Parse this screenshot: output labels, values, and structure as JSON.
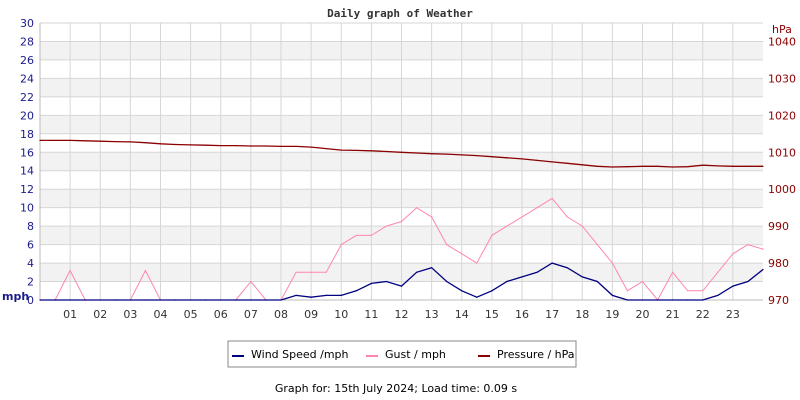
{
  "chart_data": {
    "type": "line",
    "title": "Daily graph of Weather",
    "ylabel": "mph",
    "y2label": "hPa",
    "ylim": [
      0,
      30
    ],
    "y2lim": [
      970,
      1045
    ],
    "yticks": [
      0,
      2,
      4,
      6,
      8,
      10,
      12,
      14,
      16,
      18,
      20,
      22,
      24,
      26,
      28,
      30
    ],
    "y2ticks": [
      970,
      980,
      990,
      1000,
      1010,
      1020,
      1030,
      1040
    ],
    "xlim": [
      0,
      24
    ],
    "xticks": [
      "01",
      "02",
      "03",
      "04",
      "05",
      "06",
      "07",
      "08",
      "09",
      "10",
      "11",
      "12",
      "13",
      "14",
      "15",
      "16",
      "17",
      "18",
      "19",
      "20",
      "21",
      "22",
      "23"
    ],
    "grid": true,
    "legend": "bottom",
    "x": [
      0,
      0.5,
      1,
      1.5,
      2,
      2.5,
      3,
      3.5,
      4,
      4.5,
      5,
      5.5,
      6,
      6.5,
      7,
      7.5,
      8,
      8.5,
      9,
      9.5,
      10,
      10.5,
      11,
      11.5,
      12,
      12.5,
      13,
      13.5,
      14,
      14.5,
      15,
      15.5,
      16,
      16.5,
      17,
      17.5,
      18,
      18.5,
      19,
      19.5,
      20,
      20.5,
      21,
      21.5,
      22,
      22.5,
      23,
      23.5,
      24
    ],
    "series": [
      {
        "name": "Wind Speed /mph",
        "color": "#000080",
        "axis": "left",
        "values": [
          0,
          0,
          0,
          0,
          0,
          0,
          0,
          0,
          0,
          0,
          0,
          0,
          0,
          0,
          0,
          0,
          0,
          0.5,
          0.3,
          0.5,
          0.5,
          1,
          1.8,
          2,
          1.5,
          3,
          3.5,
          2,
          1,
          0.3,
          1,
          2,
          2.5,
          3,
          4,
          3.5,
          2.5,
          2,
          0.5,
          0,
          0,
          0,
          0,
          0,
          0,
          0.5,
          1.5,
          2,
          3.3
        ]
      },
      {
        "name": "Gust / mph",
        "color": "#ff88aa",
        "axis": "left",
        "values": [
          0,
          0,
          3.2,
          0,
          0,
          0,
          0,
          3.2,
          0,
          0,
          0,
          0,
          0,
          0,
          2,
          0,
          0,
          3,
          3,
          3,
          6,
          7,
          7,
          8,
          8.5,
          10,
          9,
          6,
          5,
          4,
          7,
          8,
          9,
          10,
          11,
          9,
          8,
          6,
          4,
          1,
          2,
          0,
          3,
          1,
          1,
          3,
          5,
          6,
          5.5
        ]
      },
      {
        "name": "Pressure / hPa",
        "color": "#8b0000",
        "axis": "right",
        "values": [
          1013.2,
          1013.2,
          1013.2,
          1013.1,
          1013,
          1012.9,
          1012.8,
          1012.6,
          1012.3,
          1012.1,
          1012,
          1011.9,
          1011.8,
          1011.8,
          1011.7,
          1011.7,
          1011.6,
          1011.6,
          1011.4,
          1011,
          1010.6,
          1010.5,
          1010.4,
          1010.2,
          1010,
          1009.8,
          1009.6,
          1009.5,
          1009.3,
          1009.1,
          1008.8,
          1008.5,
          1008.2,
          1007.8,
          1007.4,
          1007,
          1006.6,
          1006.2,
          1006,
          1006.1,
          1006.2,
          1006.2,
          1006,
          1006.1,
          1006.5,
          1006.3,
          1006.2,
          1006.2,
          1006.2
        ]
      }
    ]
  },
  "footer": "Graph for: 15th July 2024; Load time: 0.09 s"
}
